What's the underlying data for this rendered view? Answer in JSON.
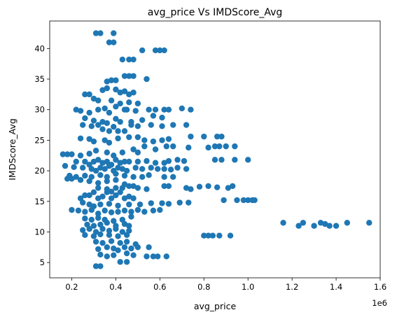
{
  "chart_data": {
    "type": "scatter",
    "title": "avg_price Vs IMDScore_Avg",
    "xlabel": "avg_price",
    "ylabel": "IMDScore_Avg",
    "x_offset_label": "1e6",
    "xlim": [
      0.1,
      1.6
    ],
    "ylim": [
      2.5,
      44.5
    ],
    "x_ticks": [
      0.2,
      0.4,
      0.6,
      0.8,
      1.0,
      1.2,
      1.4,
      1.6
    ],
    "x_tick_labels": [
      "0.2",
      "0.4",
      "0.6",
      "0.8",
      "1.0",
      "1.2",
      "1.4",
      "1.6"
    ],
    "y_ticks": [
      5,
      10,
      15,
      20,
      25,
      30,
      35,
      40
    ],
    "y_tick_labels": [
      "5",
      "10",
      "15",
      "20",
      "25",
      "30",
      "35",
      "40"
    ],
    "color": "#1f77b4",
    "points": [
      [
        0.31,
        42.5
      ],
      [
        0.33,
        42.5
      ],
      [
        0.39,
        42.5
      ],
      [
        0.37,
        41.0
      ],
      [
        0.39,
        41.0
      ],
      [
        0.43,
        38.2
      ],
      [
        0.46,
        38.2
      ],
      [
        0.48,
        38.2
      ],
      [
        0.52,
        39.7
      ],
      [
        0.58,
        39.7
      ],
      [
        0.6,
        39.7
      ],
      [
        0.62,
        39.7
      ],
      [
        0.44,
        35.5
      ],
      [
        0.46,
        35.5
      ],
      [
        0.48,
        35.5
      ],
      [
        0.54,
        35.0
      ],
      [
        0.4,
        34.8
      ],
      [
        0.36,
        34.6
      ],
      [
        0.38,
        34.8
      ],
      [
        0.26,
        32.5
      ],
      [
        0.28,
        32.5
      ],
      [
        0.3,
        31.8
      ],
      [
        0.32,
        31.5
      ],
      [
        0.34,
        33.2
      ],
      [
        0.36,
        33.5
      ],
      [
        0.4,
        33.3
      ],
      [
        0.42,
        32.8
      ],
      [
        0.44,
        33.0
      ],
      [
        0.46,
        32.5
      ],
      [
        0.48,
        32.8
      ],
      [
        0.38,
        31.5
      ],
      [
        0.42,
        31.0
      ],
      [
        0.46,
        31.2
      ],
      [
        0.5,
        31.0
      ],
      [
        0.44,
        30.0
      ],
      [
        0.22,
        30.0
      ],
      [
        0.24,
        29.8
      ],
      [
        0.28,
        29.5
      ],
      [
        0.32,
        30.0
      ],
      [
        0.35,
        30.2
      ],
      [
        0.37,
        29.5
      ],
      [
        0.4,
        30.5
      ],
      [
        0.45,
        30.0
      ],
      [
        0.49,
        29.8
      ],
      [
        0.55,
        30.0
      ],
      [
        0.58,
        30.0
      ],
      [
        0.62,
        30.0
      ],
      [
        0.64,
        30.0
      ],
      [
        0.7,
        30.2
      ],
      [
        0.74,
        30.0
      ],
      [
        0.26,
        28.6
      ],
      [
        0.3,
        28.2
      ],
      [
        0.34,
        28.0
      ],
      [
        0.36,
        27.8
      ],
      [
        0.4,
        28.5
      ],
      [
        0.42,
        28.0
      ],
      [
        0.47,
        28.0
      ],
      [
        0.52,
        28.3
      ],
      [
        0.57,
        29.0
      ],
      [
        0.61,
        28.7
      ],
      [
        0.25,
        27.5
      ],
      [
        0.29,
        27.3
      ],
      [
        0.32,
        27.5
      ],
      [
        0.34,
        26.8
      ],
      [
        0.37,
        26.5
      ],
      [
        0.39,
        27.2
      ],
      [
        0.41,
        26.5
      ],
      [
        0.44,
        26.5
      ],
      [
        0.47,
        27.5
      ],
      [
        0.5,
        27.3
      ],
      [
        0.56,
        27.5
      ],
      [
        0.61,
        27.3
      ],
      [
        0.66,
        27.5
      ],
      [
        0.72,
        27.5
      ],
      [
        0.24,
        25.3
      ],
      [
        0.28,
        25.2
      ],
      [
        0.3,
        24.8
      ],
      [
        0.35,
        25.0
      ],
      [
        0.37,
        24.6
      ],
      [
        0.41,
        25.3
      ],
      [
        0.46,
        25.5
      ],
      [
        0.5,
        25.5
      ],
      [
        0.53,
        25.0
      ],
      [
        0.57,
        24.8
      ],
      [
        0.61,
        25.0
      ],
      [
        0.64,
        25.2
      ],
      [
        0.74,
        25.6
      ],
      [
        0.8,
        25.6
      ],
      [
        0.86,
        25.6
      ],
      [
        0.88,
        25.6
      ],
      [
        0.16,
        22.7
      ],
      [
        0.18,
        22.7
      ],
      [
        0.2,
        22.7
      ],
      [
        0.24,
        22.5
      ],
      [
        0.28,
        22.8
      ],
      [
        0.31,
        23.3
      ],
      [
        0.36,
        23.0
      ],
      [
        0.39,
        22.5
      ],
      [
        0.43,
        23.0
      ],
      [
        0.48,
        23.5
      ],
      [
        0.5,
        23.0
      ],
      [
        0.53,
        24.0
      ],
      [
        0.58,
        23.5
      ],
      [
        0.63,
        24.0
      ],
      [
        0.66,
        24.0
      ],
      [
        0.73,
        23.8
      ],
      [
        0.82,
        23.8
      ],
      [
        0.85,
        24.0
      ],
      [
        0.87,
        24.0
      ],
      [
        0.9,
        24.0
      ],
      [
        0.94,
        24.0
      ],
      [
        0.22,
        21.5
      ],
      [
        0.26,
        21.5
      ],
      [
        0.28,
        21.0
      ],
      [
        0.3,
        21.5
      ],
      [
        0.32,
        21.8
      ],
      [
        0.34,
        21.3
      ],
      [
        0.36,
        21.5
      ],
      [
        0.38,
        21.0
      ],
      [
        0.4,
        21.8
      ],
      [
        0.42,
        21.3
      ],
      [
        0.44,
        21.5
      ],
      [
        0.46,
        21.5
      ],
      [
        0.5,
        21.5
      ],
      [
        0.54,
        21.6
      ],
      [
        0.58,
        21.3
      ],
      [
        0.62,
        21.3
      ],
      [
        0.64,
        21.6
      ],
      [
        0.68,
        21.8
      ],
      [
        0.71,
        21.6
      ],
      [
        0.85,
        21.8
      ],
      [
        0.88,
        21.8
      ],
      [
        0.94,
        21.8
      ],
      [
        1.0,
        21.8
      ],
      [
        0.17,
        20.8
      ],
      [
        0.21,
        20.6
      ],
      [
        0.25,
        20.5
      ],
      [
        0.29,
        20.3
      ],
      [
        0.31,
        20.0
      ],
      [
        0.33,
        20.5
      ],
      [
        0.35,
        20.3
      ],
      [
        0.37,
        20.8
      ],
      [
        0.39,
        20.0
      ],
      [
        0.41,
        20.5
      ],
      [
        0.43,
        20.3
      ],
      [
        0.45,
        20.0
      ],
      [
        0.49,
        20.5
      ],
      [
        0.52,
        20.3
      ],
      [
        0.56,
        20.5
      ],
      [
        0.59,
        20.3
      ],
      [
        0.62,
        20.3
      ],
      [
        0.65,
        20.2
      ],
      [
        0.68,
        20.5
      ],
      [
        0.72,
        20.3
      ],
      [
        0.19,
        19.2
      ],
      [
        0.22,
        19.0
      ],
      [
        0.26,
        19.2
      ],
      [
        0.29,
        19.0
      ],
      [
        0.33,
        19.3
      ],
      [
        0.36,
        19.0
      ],
      [
        0.4,
        19.5
      ],
      [
        0.44,
        19.2
      ],
      [
        0.48,
        19.0
      ],
      [
        0.52,
        19.0
      ],
      [
        0.55,
        19.3
      ],
      [
        0.62,
        19.0
      ],
      [
        0.66,
        19.0
      ],
      [
        0.18,
        18.7
      ],
      [
        0.2,
        18.7
      ],
      [
        0.24,
        18.5
      ],
      [
        0.28,
        18.3
      ],
      [
        0.32,
        18.0
      ],
      [
        0.36,
        18.3
      ],
      [
        0.4,
        18.5
      ],
      [
        0.44,
        17.8
      ],
      [
        0.32,
        17.2
      ],
      [
        0.36,
        17.0
      ],
      [
        0.38,
        16.6
      ],
      [
        0.4,
        17.2
      ],
      [
        0.43,
        17.2
      ],
      [
        0.46,
        17.5
      ],
      [
        0.48,
        17.5
      ],
      [
        0.5,
        17.2
      ],
      [
        0.54,
        17.0
      ],
      [
        0.62,
        17.5
      ],
      [
        0.64,
        17.5
      ],
      [
        0.72,
        17.2
      ],
      [
        0.74,
        17.0
      ],
      [
        0.78,
        17.4
      ],
      [
        0.82,
        17.5
      ],
      [
        0.86,
        17.3
      ],
      [
        0.91,
        17.2
      ],
      [
        0.93,
        17.5
      ],
      [
        0.28,
        16.0
      ],
      [
        0.3,
        16.5
      ],
      [
        0.32,
        15.5
      ],
      [
        0.34,
        15.8
      ],
      [
        0.36,
        16.5
      ],
      [
        0.38,
        15.5
      ],
      [
        0.4,
        16.0
      ],
      [
        0.42,
        16.5
      ],
      [
        0.44,
        15.5
      ],
      [
        0.46,
        15.8
      ],
      [
        0.48,
        15.5
      ],
      [
        0.24,
        15.5
      ],
      [
        0.26,
        16.0
      ],
      [
        0.25,
        14.8
      ],
      [
        0.28,
        14.5
      ],
      [
        0.3,
        14.2
      ],
      [
        0.33,
        14.5
      ],
      [
        0.37,
        14.6
      ],
      [
        0.41,
        14.3
      ],
      [
        0.46,
        14.5
      ],
      [
        0.51,
        14.5
      ],
      [
        0.56,
        14.7
      ],
      [
        0.61,
        14.7
      ],
      [
        0.64,
        14.6
      ],
      [
        0.69,
        14.8
      ],
      [
        0.73,
        14.8
      ],
      [
        0.89,
        15.2
      ],
      [
        0.95,
        15.2
      ],
      [
        0.98,
        15.2
      ],
      [
        1.0,
        15.2
      ],
      [
        1.02,
        15.2
      ],
      [
        1.03,
        15.2
      ],
      [
        0.2,
        13.6
      ],
      [
        0.23,
        13.5
      ],
      [
        0.26,
        13.3
      ],
      [
        0.29,
        13.6
      ],
      [
        0.32,
        13.0
      ],
      [
        0.35,
        13.5
      ],
      [
        0.38,
        13.2
      ],
      [
        0.41,
        13.3
      ],
      [
        0.44,
        13.5
      ],
      [
        0.47,
        13.3
      ],
      [
        0.5,
        13.6
      ],
      [
        0.53,
        13.3
      ],
      [
        0.57,
        13.5
      ],
      [
        0.6,
        13.6
      ],
      [
        0.26,
        12.2
      ],
      [
        0.29,
        12.0
      ],
      [
        0.32,
        12.3
      ],
      [
        0.35,
        12.0
      ],
      [
        0.39,
        11.8
      ],
      [
        0.43,
        12.0
      ],
      [
        0.47,
        12.5
      ],
      [
        0.27,
        11.2
      ],
      [
        0.3,
        11.0
      ],
      [
        0.33,
        11.2
      ],
      [
        0.36,
        11.5
      ],
      [
        0.4,
        11.0
      ],
      [
        0.44,
        11.3
      ],
      [
        0.46,
        11.0
      ],
      [
        1.16,
        11.5
      ],
      [
        1.23,
        11.0
      ],
      [
        1.25,
        11.5
      ],
      [
        1.3,
        11.0
      ],
      [
        1.33,
        11.5
      ],
      [
        1.35,
        11.3
      ],
      [
        1.37,
        11.0
      ],
      [
        1.4,
        11.0
      ],
      [
        1.45,
        11.5
      ],
      [
        1.55,
        11.5
      ],
      [
        0.25,
        10.3
      ],
      [
        0.28,
        10.5
      ],
      [
        0.31,
        10.0
      ],
      [
        0.34,
        10.5
      ],
      [
        0.37,
        10.2
      ],
      [
        0.4,
        10.5
      ],
      [
        0.43,
        10.0
      ],
      [
        0.46,
        10.2
      ],
      [
        0.26,
        9.5
      ],
      [
        0.3,
        9.3
      ],
      [
        0.33,
        9.6
      ],
      [
        0.37,
        9.5
      ],
      [
        0.41,
        9.3
      ],
      [
        0.45,
        9.5
      ],
      [
        0.8,
        9.4
      ],
      [
        0.82,
        9.4
      ],
      [
        0.84,
        9.4
      ],
      [
        0.87,
        9.4
      ],
      [
        0.92,
        9.4
      ],
      [
        0.31,
        8.4
      ],
      [
        0.34,
        8.2
      ],
      [
        0.38,
        8.5
      ],
      [
        0.42,
        8.2
      ],
      [
        0.45,
        8.4
      ],
      [
        0.49,
        8.0
      ],
      [
        0.32,
        7.2
      ],
      [
        0.36,
        7.5
      ],
      [
        0.39,
        7.3
      ],
      [
        0.41,
        7.0
      ],
      [
        0.44,
        7.5
      ],
      [
        0.47,
        7.3
      ],
      [
        0.5,
        7.5
      ],
      [
        0.55,
        7.5
      ],
      [
        0.33,
        6.3
      ],
      [
        0.36,
        6.0
      ],
      [
        0.39,
        6.2
      ],
      [
        0.45,
        6.5
      ],
      [
        0.48,
        6.2
      ],
      [
        0.54,
        6.0
      ],
      [
        0.57,
        6.0
      ],
      [
        0.59,
        6.0
      ],
      [
        0.63,
        6.0
      ],
      [
        0.31,
        4.4
      ],
      [
        0.33,
        4.4
      ],
      [
        0.42,
        5.1
      ],
      [
        0.45,
        5.1
      ]
    ]
  }
}
